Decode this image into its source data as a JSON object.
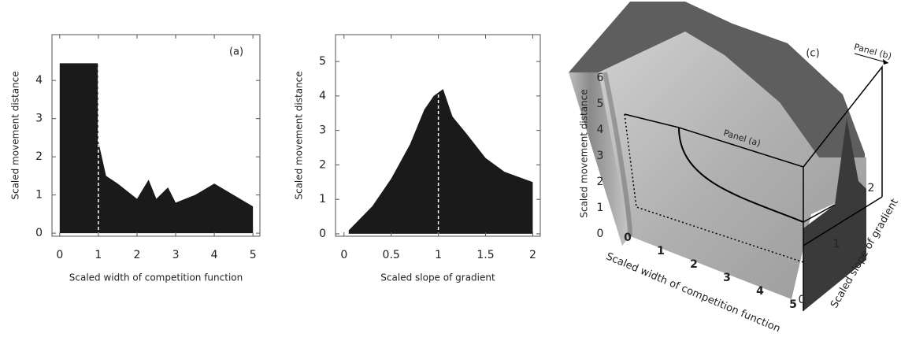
{
  "chart_data": [
    {
      "type": "area",
      "annotation": "(a)",
      "xlabel": "Scaled width of competition function",
      "ylabel": "Scaled movement distance",
      "x": [
        0,
        0.99,
        1,
        1.2,
        1.5,
        2.0,
        2.3,
        2.5,
        2.8,
        3.0,
        3.5,
        4.0,
        4.5,
        5.0
      ],
      "series": [
        {
          "color": "#1a1a1a",
          "values": [
            4.45,
            4.45,
            2.4,
            1.5,
            1.3,
            0.9,
            1.4,
            0.9,
            1.2,
            0.8,
            1.0,
            1.3,
            1.0,
            0.7
          ]
        }
      ],
      "vline": 1,
      "xlim": [
        -0.2,
        5.18
      ],
      "ylim": [
        -0.08,
        5.2
      ],
      "xticks": [
        0,
        1,
        2,
        3,
        4,
        5
      ],
      "yticks": [
        0,
        1,
        2,
        3,
        4
      ]
    },
    {
      "type": "area",
      "xlabel": "Scaled slope of gradient",
      "ylabel": "Scaled movement distance",
      "x": [
        0.05,
        0.3,
        0.5,
        0.7,
        0.85,
        0.95,
        1.05,
        1.15,
        1.3,
        1.5,
        1.7,
        1.9,
        2.0
      ],
      "series": [
        {
          "color": "#1a1a1a",
          "values": [
            0.1,
            0.8,
            1.6,
            2.6,
            3.6,
            4.0,
            4.2,
            3.4,
            2.9,
            2.2,
            1.8,
            1.6,
            1.5
          ]
        }
      ],
      "vline": 1,
      "xlim": [
        -0.09,
        2.08
      ],
      "ylim": [
        -0.07,
        5.78
      ],
      "xticks": [
        0,
        0.5,
        1,
        1.5,
        2
      ],
      "yticks": [
        0,
        1,
        2,
        3,
        4,
        5
      ]
    },
    {
      "type": "surface3d",
      "annotation": "(c)",
      "xlabel": "Scaled width of competition function",
      "ylabel": "Scaled slope of gradient",
      "zlabel": "Scaled movement distance",
      "xticks": [
        0,
        1,
        2,
        3,
        4,
        5
      ],
      "yticks": [
        0,
        1,
        2
      ],
      "zticks": [
        0,
        1,
        2,
        3,
        4,
        5,
        6
      ],
      "panel_labels": [
        "Panel (a)",
        "Panel (b)"
      ]
    }
  ]
}
